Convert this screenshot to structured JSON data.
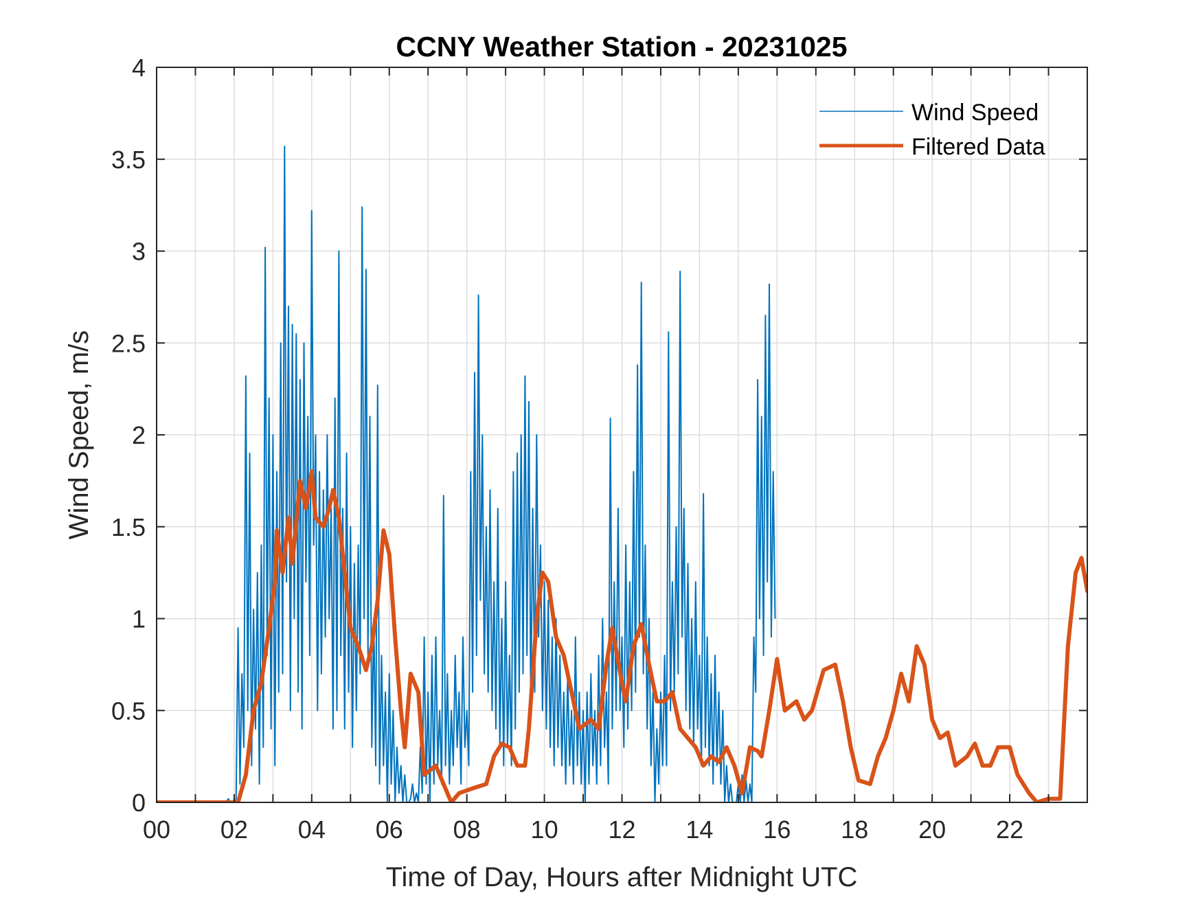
{
  "chart_data": {
    "type": "line",
    "title": "CCNY Weather Station - 20231025",
    "xlabel": "Time of Day, Hours after Midnight UTC",
    "ylabel": "Wind Speed, m/s",
    "xlim": [
      0,
      24
    ],
    "ylim": [
      0,
      4
    ],
    "xticks": [
      0,
      2,
      4,
      6,
      8,
      10,
      12,
      14,
      16,
      18,
      20,
      22
    ],
    "xtick_labels": [
      "00",
      "02",
      "04",
      "06",
      "08",
      "10",
      "12",
      "14",
      "16",
      "18",
      "20",
      "22"
    ],
    "xminor_step": 1,
    "yticks": [
      0,
      0.5,
      1,
      1.5,
      2,
      2.5,
      3,
      3.5,
      4
    ],
    "ytick_labels": [
      "0",
      "0.5",
      "1",
      "1.5",
      "2",
      "2.5",
      "3",
      "3.5",
      "4"
    ],
    "grid": true,
    "legend": {
      "position": "top-right",
      "entries": [
        "Wind Speed",
        "Filtered Data"
      ]
    },
    "colors": {
      "wind_speed": "#0072BD",
      "filtered": "#D95319",
      "grid": "#DDDDDD",
      "axis": "#262626"
    },
    "series": [
      {
        "name": "Wind Speed",
        "style": "thin",
        "x_start": 0,
        "x_step": 0.05,
        "values": [
          0,
          0,
          0,
          0,
          0,
          0,
          0,
          0,
          0,
          0,
          0,
          0,
          0,
          0,
          0,
          0,
          0,
          0,
          0,
          0,
          0,
          0,
          0,
          0,
          0,
          0,
          0,
          0,
          0,
          0,
          0,
          0,
          0,
          0,
          0,
          0,
          0,
          0.02,
          0,
          0,
          0,
          0.02,
          0.95,
          0.1,
          0.7,
          0.3,
          2.32,
          0.5,
          1.9,
          0.2,
          1.05,
          0.4,
          1.25,
          0.1,
          1.4,
          0.3,
          3.02,
          0.8,
          2.2,
          0.4,
          2.0,
          0.2,
          1.8,
          0.6,
          2.5,
          0.7,
          3.57,
          1.2,
          2.7,
          0.5,
          2.6,
          1.0,
          2.55,
          0.6,
          2.3,
          0.4,
          2.5,
          1.2,
          2.1,
          0.8,
          3.22,
          1.4,
          2.0,
          0.5,
          1.8,
          0.7,
          1.7,
          0.9,
          2.0,
          1.0,
          1.6,
          0.4,
          2.2,
          0.5,
          3.0,
          0.8,
          1.6,
          0.4,
          1.9,
          0.6,
          1.5,
          0.3,
          1.3,
          0.5,
          1.4,
          0.7,
          3.24,
          1.0,
          2.9,
          0.8,
          2.1,
          0.3,
          1.0,
          0.2,
          2.27,
          0.1,
          0.8,
          0.2,
          0.6,
          0,
          0.7,
          0.1,
          0.5,
          0,
          0.3,
          0.05,
          0.2,
          0,
          0.15,
          0,
          0,
          0.02,
          0.1,
          0,
          0.05,
          0,
          0.3,
          0.05,
          0.9,
          0.1,
          0.6,
          0,
          0.8,
          0.1,
          0.9,
          0.2,
          0.5,
          0.1,
          1.67,
          0.2,
          0.7,
          0.1,
          0.5,
          0.2,
          0.8,
          0.3,
          0.6,
          0.1,
          0.9,
          0.3,
          0.5,
          0.2,
          1.8,
          0.6,
          2.34,
          0.8,
          2.76,
          1.1,
          2.0,
          0.7,
          1.5,
          0.6,
          1.7,
          0.5,
          1.2,
          0.4,
          1.6,
          0.3,
          1.0,
          0.2,
          1.2,
          0.3,
          0.8,
          0.2,
          1.8,
          0.4,
          1.9,
          0.6,
          2.0,
          0.7,
          2.32,
          0.8,
          2.18,
          0.5,
          1.6,
          0.6,
          2.0,
          0.9,
          1.4,
          0.5,
          1.2,
          0.4,
          1.1,
          0.3,
          0.9,
          0.2,
          1.0,
          0.3,
          0.8,
          0.2,
          0.6,
          0.1,
          0.7,
          0.2,
          0.5,
          0.1,
          0.9,
          0.2,
          0.6,
          0.1,
          0.5,
          0,
          0.6,
          0.1,
          0.7,
          0.2,
          0.5,
          0.1,
          0.8,
          0.2,
          1.0,
          0.3,
          0.6,
          0.1,
          2.09,
          0.4,
          1.2,
          0.5,
          1.6,
          0.5,
          0.9,
          0.3,
          1.4,
          0.4,
          1.2,
          0.5,
          1.8,
          0.6,
          2.38,
          0.9,
          2.83,
          0.7,
          1.4,
          0.4,
          1.0,
          0.2,
          0.6,
          0,
          0.4,
          0.1,
          0.6,
          0.2,
          0.8,
          0.2,
          2.56,
          0.5,
          1.2,
          0.6,
          1.5,
          0.7,
          2.89,
          0.9,
          1.6,
          0.5,
          1.3,
          0.4,
          1.0,
          0.3,
          1.2,
          0.4,
          0.8,
          0.2,
          1.68,
          0.3,
          0.9,
          0.2,
          0.7,
          0.1,
          0.8,
          0.2,
          0.6,
          0.1,
          0.5,
          0,
          0.2,
          0,
          0.1,
          0,
          0,
          0,
          0.1,
          0,
          0.15,
          0,
          0.12,
          0,
          0.1,
          0,
          0.9,
          0.6,
          2.3,
          1.0,
          2.1,
          0.8,
          2.65,
          1.2,
          2.82,
          0.9,
          1.8,
          1.0
        ]
      },
      {
        "name": "Filtered Data",
        "style": "thick",
        "points": [
          [
            0,
            0
          ],
          [
            2.1,
            0
          ],
          [
            2.3,
            0.15
          ],
          [
            2.5,
            0.5
          ],
          [
            2.7,
            0.65
          ],
          [
            2.9,
            0.95
          ],
          [
            3.05,
            1.2
          ],
          [
            3.1,
            1.48
          ],
          [
            3.25,
            1.25
          ],
          [
            3.4,
            1.55
          ],
          [
            3.5,
            1.3
          ],
          [
            3.7,
            1.75
          ],
          [
            3.85,
            1.6
          ],
          [
            4.0,
            1.8
          ],
          [
            4.1,
            1.55
          ],
          [
            4.3,
            1.5
          ],
          [
            4.45,
            1.6
          ],
          [
            4.55,
            1.7
          ],
          [
            4.7,
            1.55
          ],
          [
            4.85,
            1.25
          ],
          [
            5.0,
            0.95
          ],
          [
            5.2,
            0.85
          ],
          [
            5.4,
            0.72
          ],
          [
            5.55,
            0.85
          ],
          [
            5.7,
            1.1
          ],
          [
            5.85,
            1.48
          ],
          [
            6.0,
            1.35
          ],
          [
            6.15,
            0.9
          ],
          [
            6.3,
            0.5
          ],
          [
            6.4,
            0.3
          ],
          [
            6.55,
            0.7
          ],
          [
            6.75,
            0.6
          ],
          [
            6.9,
            0.15
          ],
          [
            7.2,
            0.2
          ],
          [
            7.5,
            0.05
          ],
          [
            7.6,
            0
          ],
          [
            7.8,
            0.05
          ],
          [
            8.2,
            0.08
          ],
          [
            8.5,
            0.1
          ],
          [
            8.7,
            0.25
          ],
          [
            8.9,
            0.32
          ],
          [
            9.1,
            0.3
          ],
          [
            9.3,
            0.2
          ],
          [
            9.5,
            0.2
          ],
          [
            9.6,
            0.4
          ],
          [
            9.8,
            1.0
          ],
          [
            9.95,
            1.25
          ],
          [
            10.1,
            1.2
          ],
          [
            10.3,
            0.9
          ],
          [
            10.5,
            0.8
          ],
          [
            10.7,
            0.6
          ],
          [
            10.9,
            0.4
          ],
          [
            11.2,
            0.45
          ],
          [
            11.4,
            0.4
          ],
          [
            11.6,
            0.75
          ],
          [
            11.75,
            0.95
          ],
          [
            12.0,
            0.65
          ],
          [
            12.1,
            0.55
          ],
          [
            12.3,
            0.85
          ],
          [
            12.5,
            0.97
          ],
          [
            12.7,
            0.75
          ],
          [
            12.9,
            0.55
          ],
          [
            13.1,
            0.55
          ],
          [
            13.3,
            0.6
          ],
          [
            13.5,
            0.4
          ],
          [
            13.7,
            0.35
          ],
          [
            13.9,
            0.3
          ],
          [
            14.1,
            0.2
          ],
          [
            14.3,
            0.25
          ],
          [
            14.5,
            0.22
          ],
          [
            14.7,
            0.3
          ],
          [
            14.9,
            0.2
          ],
          [
            15.1,
            0.05
          ],
          [
            15.3,
            0.3
          ],
          [
            15.5,
            0.28
          ],
          [
            15.6,
            0.25
          ],
          [
            15.8,
            0.5
          ],
          [
            16.0,
            0.78
          ],
          [
            16.2,
            0.5
          ],
          [
            16.5,
            0.55
          ],
          [
            16.7,
            0.45
          ],
          [
            16.9,
            0.5
          ],
          [
            17.2,
            0.72
          ],
          [
            17.5,
            0.75
          ],
          [
            17.7,
            0.55
          ],
          [
            17.9,
            0.3
          ],
          [
            18.1,
            0.12
          ],
          [
            18.4,
            0.1
          ],
          [
            18.6,
            0.25
          ],
          [
            18.8,
            0.35
          ],
          [
            19.0,
            0.5
          ],
          [
            19.2,
            0.7
          ],
          [
            19.4,
            0.55
          ],
          [
            19.6,
            0.85
          ],
          [
            19.8,
            0.75
          ],
          [
            20.0,
            0.45
          ],
          [
            20.2,
            0.35
          ],
          [
            20.4,
            0.38
          ],
          [
            20.6,
            0.2
          ],
          [
            20.9,
            0.25
          ],
          [
            21.1,
            0.32
          ],
          [
            21.3,
            0.2
          ],
          [
            21.5,
            0.2
          ],
          [
            21.7,
            0.3
          ],
          [
            22.0,
            0.3
          ],
          [
            22.2,
            0.15
          ],
          [
            22.5,
            0.05
          ],
          [
            22.7,
            0.0
          ],
          [
            23.0,
            0.02
          ],
          [
            23.3,
            0.02
          ],
          [
            23.5,
            0.85
          ],
          [
            23.7,
            1.25
          ],
          [
            23.85,
            1.33
          ],
          [
            24.0,
            1.15
          ]
        ]
      }
    ]
  }
}
